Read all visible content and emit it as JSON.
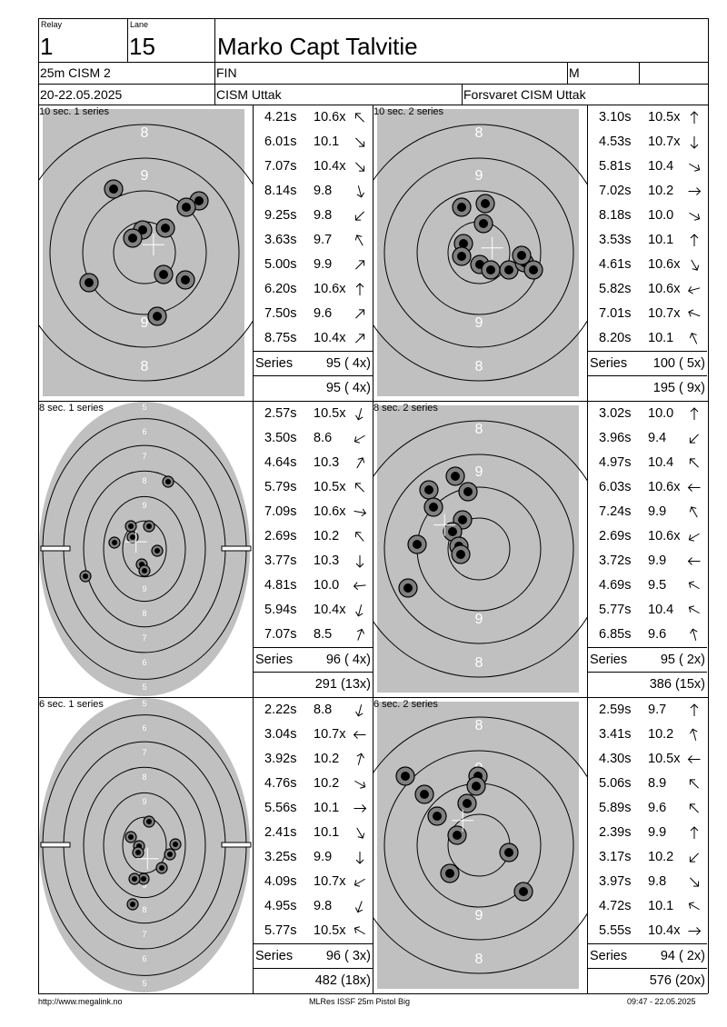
{
  "header": {
    "relay_label": "Relay",
    "relay": "1",
    "lane_label": "Lane",
    "lane": "15",
    "name": "Marko Capt Talvitie",
    "event": "25m CISM 2",
    "nation": "FIN",
    "gender": "M",
    "date": "20-22.05.2025",
    "competition": "CISM Uttak",
    "club": "Forsvaret CISM Uttak"
  },
  "series": [
    {
      "title": "10 sec. 1 series",
      "target": "precision",
      "shots": [
        {
          "time": "4.21s",
          "score": "10.6x",
          "dir": 315
        },
        {
          "time": "6.01s",
          "score": "10.1",
          "dir": 135
        },
        {
          "time": "7.07s",
          "score": "10.4x",
          "dir": 135
        },
        {
          "time": "8.14s",
          "score": "9.8",
          "dir": 165
        },
        {
          "time": "9.25s",
          "score": "9.8",
          "dir": 225
        },
        {
          "time": "3.63s",
          "score": "9.7",
          "dir": 330
        },
        {
          "time": "5.00s",
          "score": "9.9",
          "dir": 45
        },
        {
          "time": "6.20s",
          "score": "10.6x",
          "dir": 0
        },
        {
          "time": "7.50s",
          "score": "9.6",
          "dir": 45
        },
        {
          "time": "8.75s",
          "score": "10.4x",
          "dir": 45
        }
      ],
      "series_label": "Series",
      "series_total": "95 ( 4x)",
      "cumulative": "95 ( 4x)"
    },
    {
      "title": "10 sec. 2 series",
      "target": "precision",
      "shots": [
        {
          "time": "3.10s",
          "score": "10.5x",
          "dir": 0
        },
        {
          "time": "4.53s",
          "score": "10.7x",
          "dir": 180
        },
        {
          "time": "5.81s",
          "score": "10.4",
          "dir": 120
        },
        {
          "time": "7.02s",
          "score": "10.2",
          "dir": 90
        },
        {
          "time": "8.18s",
          "score": "10.0",
          "dir": 120
        },
        {
          "time": "3.53s",
          "score": "10.1",
          "dir": 0
        },
        {
          "time": "4.61s",
          "score": "10.6x",
          "dir": 150
        },
        {
          "time": "5.82s",
          "score": "10.6x",
          "dir": 255
        },
        {
          "time": "7.01s",
          "score": "10.7x",
          "dir": 290
        },
        {
          "time": "8.20s",
          "score": "10.1",
          "dir": 335
        }
      ],
      "series_label": "Series",
      "series_total": "100 ( 5x)",
      "cumulative": "195 ( 9x)"
    },
    {
      "title": "8 sec. 1 series",
      "target": "rapid",
      "shots": [
        {
          "time": "2.57s",
          "score": "10.5x",
          "dir": 195
        },
        {
          "time": "3.50s",
          "score": "8.6",
          "dir": 240
        },
        {
          "time": "4.64s",
          "score": "10.3",
          "dir": 30
        },
        {
          "time": "5.79s",
          "score": "10.5x",
          "dir": 315
        },
        {
          "time": "7.09s",
          "score": "10.6x",
          "dir": 100
        },
        {
          "time": "2.69s",
          "score": "10.2",
          "dir": 320
        },
        {
          "time": "3.77s",
          "score": "10.3",
          "dir": 180
        },
        {
          "time": "4.81s",
          "score": "10.0",
          "dir": 265
        },
        {
          "time": "5.94s",
          "score": "10.4x",
          "dir": 195
        },
        {
          "time": "7.07s",
          "score": "8.5",
          "dir": 20
        }
      ],
      "series_label": "Series",
      "series_total": "96 ( 4x)",
      "cumulative": "291 (13x)"
    },
    {
      "title": "8 sec. 2 series",
      "target": "precision",
      "shots": [
        {
          "time": "3.02s",
          "score": "10.0",
          "dir": 0
        },
        {
          "time": "3.96s",
          "score": "9.4",
          "dir": 225
        },
        {
          "time": "4.97s",
          "score": "10.4",
          "dir": 315
        },
        {
          "time": "6.03s",
          "score": "10.6x",
          "dir": 270
        },
        {
          "time": "7.24s",
          "score": "9.9",
          "dir": 330
        },
        {
          "time": "2.69s",
          "score": "10.6x",
          "dir": 240
        },
        {
          "time": "3.72s",
          "score": "9.9",
          "dir": 270
        },
        {
          "time": "4.69s",
          "score": "9.5",
          "dir": 300
        },
        {
          "time": "5.77s",
          "score": "10.4",
          "dir": 300
        },
        {
          "time": "6.85s",
          "score": "9.6",
          "dir": 345
        }
      ],
      "series_label": "Series",
      "series_total": "95 ( 2x)",
      "cumulative": "386 (15x)"
    },
    {
      "title": "6 sec. 1 series",
      "target": "rapid",
      "shots": [
        {
          "time": "2.22s",
          "score": "8.8",
          "dir": 195
        },
        {
          "time": "3.04s",
          "score": "10.7x",
          "dir": 270
        },
        {
          "time": "3.92s",
          "score": "10.2",
          "dir": 15
        },
        {
          "time": "4.76s",
          "score": "10.2",
          "dir": 120
        },
        {
          "time": "5.56s",
          "score": "10.1",
          "dir": 90
        },
        {
          "time": "2.41s",
          "score": "10.1",
          "dir": 150
        },
        {
          "time": "3.25s",
          "score": "9.9",
          "dir": 180
        },
        {
          "time": "4.09s",
          "score": "10.7x",
          "dir": 240
        },
        {
          "time": "4.95s",
          "score": "9.8",
          "dir": 200
        },
        {
          "time": "5.77s",
          "score": "10.5x",
          "dir": 300
        }
      ],
      "series_label": "Series",
      "series_total": "96 ( 3x)",
      "cumulative": "482 (18x)"
    },
    {
      "title": "6 sec. 2 series",
      "target": "precision",
      "shots": [
        {
          "time": "2.59s",
          "score": "9.7",
          "dir": 0
        },
        {
          "time": "3.41s",
          "score": "10.2",
          "dir": 345
        },
        {
          "time": "4.30s",
          "score": "10.5x",
          "dir": 270
        },
        {
          "time": "5.06s",
          "score": "8.9",
          "dir": 315
        },
        {
          "time": "5.89s",
          "score": "9.6",
          "dir": 315
        },
        {
          "time": "2.39s",
          "score": "9.9",
          "dir": 0
        },
        {
          "time": "3.17s",
          "score": "10.2",
          "dir": 225
        },
        {
          "time": "3.97s",
          "score": "9.8",
          "dir": 135
        },
        {
          "time": "4.72s",
          "score": "10.1",
          "dir": 300
        },
        {
          "time": "5.55s",
          "score": "10.4x",
          "dir": 90
        }
      ],
      "series_label": "Series",
      "series_total": "94 ( 2x)",
      "cumulative": "576 (20x)"
    }
  ],
  "ring_labels": {
    "precision": [
      "8",
      "9",
      "9",
      "8"
    ],
    "rapid": [
      "5",
      "6",
      "7",
      "8",
      "9",
      "9",
      "8",
      "7",
      "6",
      "5"
    ]
  },
  "footer": {
    "left": "http://www.megalink.no",
    "center": "MLRes ISSF 25m Pistol Big",
    "right": "09:47 - 22.05.2025"
  }
}
